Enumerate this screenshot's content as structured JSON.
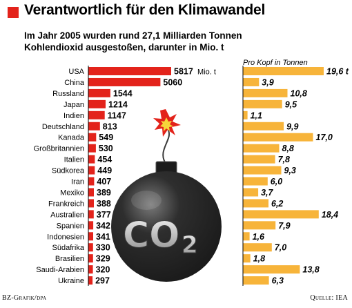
{
  "header": {
    "title": "Verantwortlich für den Klimawandel",
    "subtitle_line1": "Im Jahr 2005 wurden rund 27,1 Milliarden Tonnen",
    "subtitle_line2": "Kohlendioxid ausgestoßen, darunter in Mio. t"
  },
  "footer": {
    "source_left": "BZ-Grafik/dpa",
    "source_right": "Quelle: IEA"
  },
  "illustration": {
    "label_main": "CO",
    "label_sub": "2"
  },
  "colors": {
    "accent_red": "#e3231b",
    "bar_orange": "#f7b43a",
    "bomb": "#1a1a1a",
    "spark_red": "#e3231b",
    "spark_yellow": "#f6d63a"
  },
  "chart_data": [
    {
      "type": "bar",
      "orientation": "horizontal",
      "categories": [
        "USA",
        "China",
        "Russland",
        "Japan",
        "Indien",
        "Deutschland",
        "Kanada",
        "Großbritannien",
        "Italien",
        "Südkorea",
        "Iran",
        "Mexiko",
        "Frankreich",
        "Australien",
        "Spanien",
        "Indonesien",
        "Südafrika",
        "Brasilien",
        "Saudi-Arabien",
        "Ukraine"
      ],
      "values": [
        5817,
        5060,
        1544,
        1214,
        1147,
        813,
        549,
        530,
        454,
        449,
        407,
        389,
        388,
        377,
        342,
        341,
        330,
        329,
        320,
        297
      ],
      "value_labels": [
        "5817",
        "5060",
        "1544",
        "1214",
        "1147",
        "813",
        "549",
        "530",
        "454",
        "449",
        "407",
        "389",
        "388",
        "377",
        "342",
        "341",
        "330",
        "329",
        "320",
        "297"
      ],
      "first_value_unit": "Mio. t",
      "xlim": [
        0,
        5817
      ],
      "color": "#e3231b"
    },
    {
      "type": "bar",
      "orientation": "horizontal",
      "title": "Pro Kopf in Tonnen",
      "categories": [
        "USA",
        "China",
        "Russland",
        "Japan",
        "Indien",
        "Deutschland",
        "Kanada",
        "Großbritannien",
        "Italien",
        "Südkorea",
        "Iran",
        "Mexiko",
        "Frankreich",
        "Australien",
        "Spanien",
        "Indonesien",
        "Südafrika",
        "Brasilien",
        "Saudi-Arabien",
        "Ukraine"
      ],
      "values": [
        19.6,
        3.9,
        10.8,
        9.5,
        1.1,
        9.9,
        17.0,
        8.8,
        7.8,
        9.3,
        6.0,
        3.7,
        6.2,
        18.4,
        7.9,
        1.6,
        7.0,
        1.8,
        13.8,
        6.3
      ],
      "value_labels": [
        "19,6 t",
        "3,9",
        "10,8",
        "9,5",
        "1,1",
        "9,9",
        "17,0",
        "8,8",
        "7,8",
        "9,3",
        "6,0",
        "3,7",
        "6,2",
        "18,4",
        "7,9",
        "1,6",
        "7,0",
        "1,8",
        "13,8",
        "6,3"
      ],
      "xlim": [
        0,
        19.6
      ],
      "color": "#f7b43a"
    }
  ]
}
